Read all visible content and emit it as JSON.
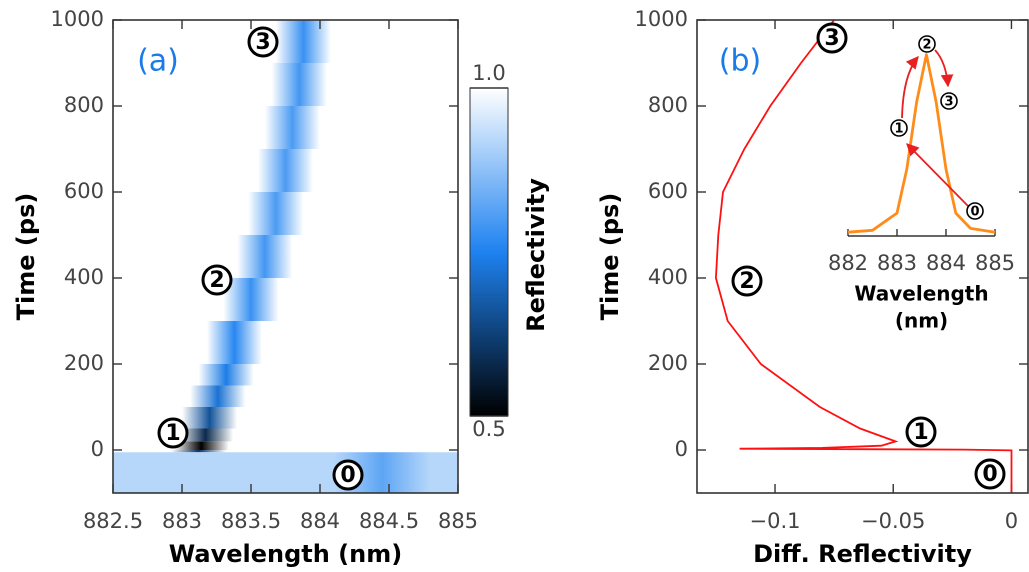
{
  "chart_data": [
    {
      "type": "heatmap",
      "xlabel": "Wavelength (nm)",
      "ylabel": "Time (ps)",
      "xlim": [
        882.5,
        885
      ],
      "xticks": [
        882.5,
        883,
        883.5,
        884,
        884.5,
        885
      ],
      "ylim": [
        -100,
        1000
      ],
      "yticks": [
        0,
        200,
        400,
        600,
        800,
        1000
      ],
      "heatmap": {
        "times": [
          -100,
          -5,
          0,
          20,
          50,
          100,
          150,
          200,
          300,
          400,
          500,
          600,
          700,
          800,
          900
        ],
        "centers": [
          884.45,
          883.12,
          883.14,
          883.17,
          883.2,
          883.26,
          883.32,
          883.38,
          883.5,
          883.6,
          883.68,
          883.75,
          883.8,
          883.85,
          883.88
        ],
        "minima": [
          0.82,
          0.6,
          0.5,
          0.58,
          0.66,
          0.72,
          0.74,
          0.76,
          0.78,
          0.79,
          0.8,
          0.8,
          0.8,
          0.79,
          0.78
        ],
        "baselines": [
          0.92,
          1,
          1,
          1,
          1,
          1,
          1,
          1,
          1,
          1,
          1,
          1,
          1,
          1,
          1
        ]
      },
      "colorbar": {
        "label": "Reflectivity",
        "lim": [
          0.5,
          1
        ],
        "ticks": [
          {
            "value": 1,
            "label": "1.0"
          },
          0.5
        ]
      },
      "annotations": [
        "(a)",
        "3",
        "2",
        "1",
        "0"
      ]
    },
    {
      "type": "line",
      "xlabel": "Diff. Reflectivity",
      "ylabel": "Time (ps)",
      "xlim": [
        -0.133,
        0.007
      ],
      "xticks": [
        {
          "value": -0.1,
          "label": "−0.1"
        },
        {
          "value": -0.05,
          "label": "−0.05"
        },
        0
      ],
      "ylim": [
        -100,
        1000
      ],
      "yticks": [
        0,
        200,
        400,
        600,
        800,
        1000
      ],
      "series": [
        {
          "color": "#ff1010",
          "x": [
            0,
            0,
            -0.02,
            -0.115,
            -0.08,
            -0.055,
            -0.049,
            -0.064,
            -0.081,
            -0.106,
            -0.12,
            -0.125,
            -0.124,
            -0.122,
            -0.113,
            -0.102,
            -0.089,
            -0.075
          ],
          "y": [
            -100,
            -1,
            1,
            3,
            5,
            10,
            20,
            50,
            100,
            200,
            300,
            400,
            500,
            600,
            700,
            800,
            900,
            1000
          ]
        }
      ],
      "annotations": [
        "(b)",
        "3",
        "2",
        "1",
        "0"
      ],
      "inset": {
        "color": "#ff8c1a",
        "xlabel": [
          "Wavelength",
          "(nm)"
        ],
        "xlim": [
          882,
          885
        ],
        "xticks": [
          882,
          883,
          884,
          885
        ],
        "ylim": [
          0,
          1
        ],
        "x": [
          882,
          882.5,
          883,
          883.2,
          883.4,
          883.6,
          883.8,
          884,
          884.2,
          884.5,
          885
        ],
        "values": [
          0.02,
          0.03,
          0.12,
          0.35,
          0.7,
          0.95,
          0.7,
          0.35,
          0.12,
          0.04,
          0.02
        ],
        "annotations": [
          "2",
          "3",
          "1",
          "0"
        ]
      }
    }
  ]
}
